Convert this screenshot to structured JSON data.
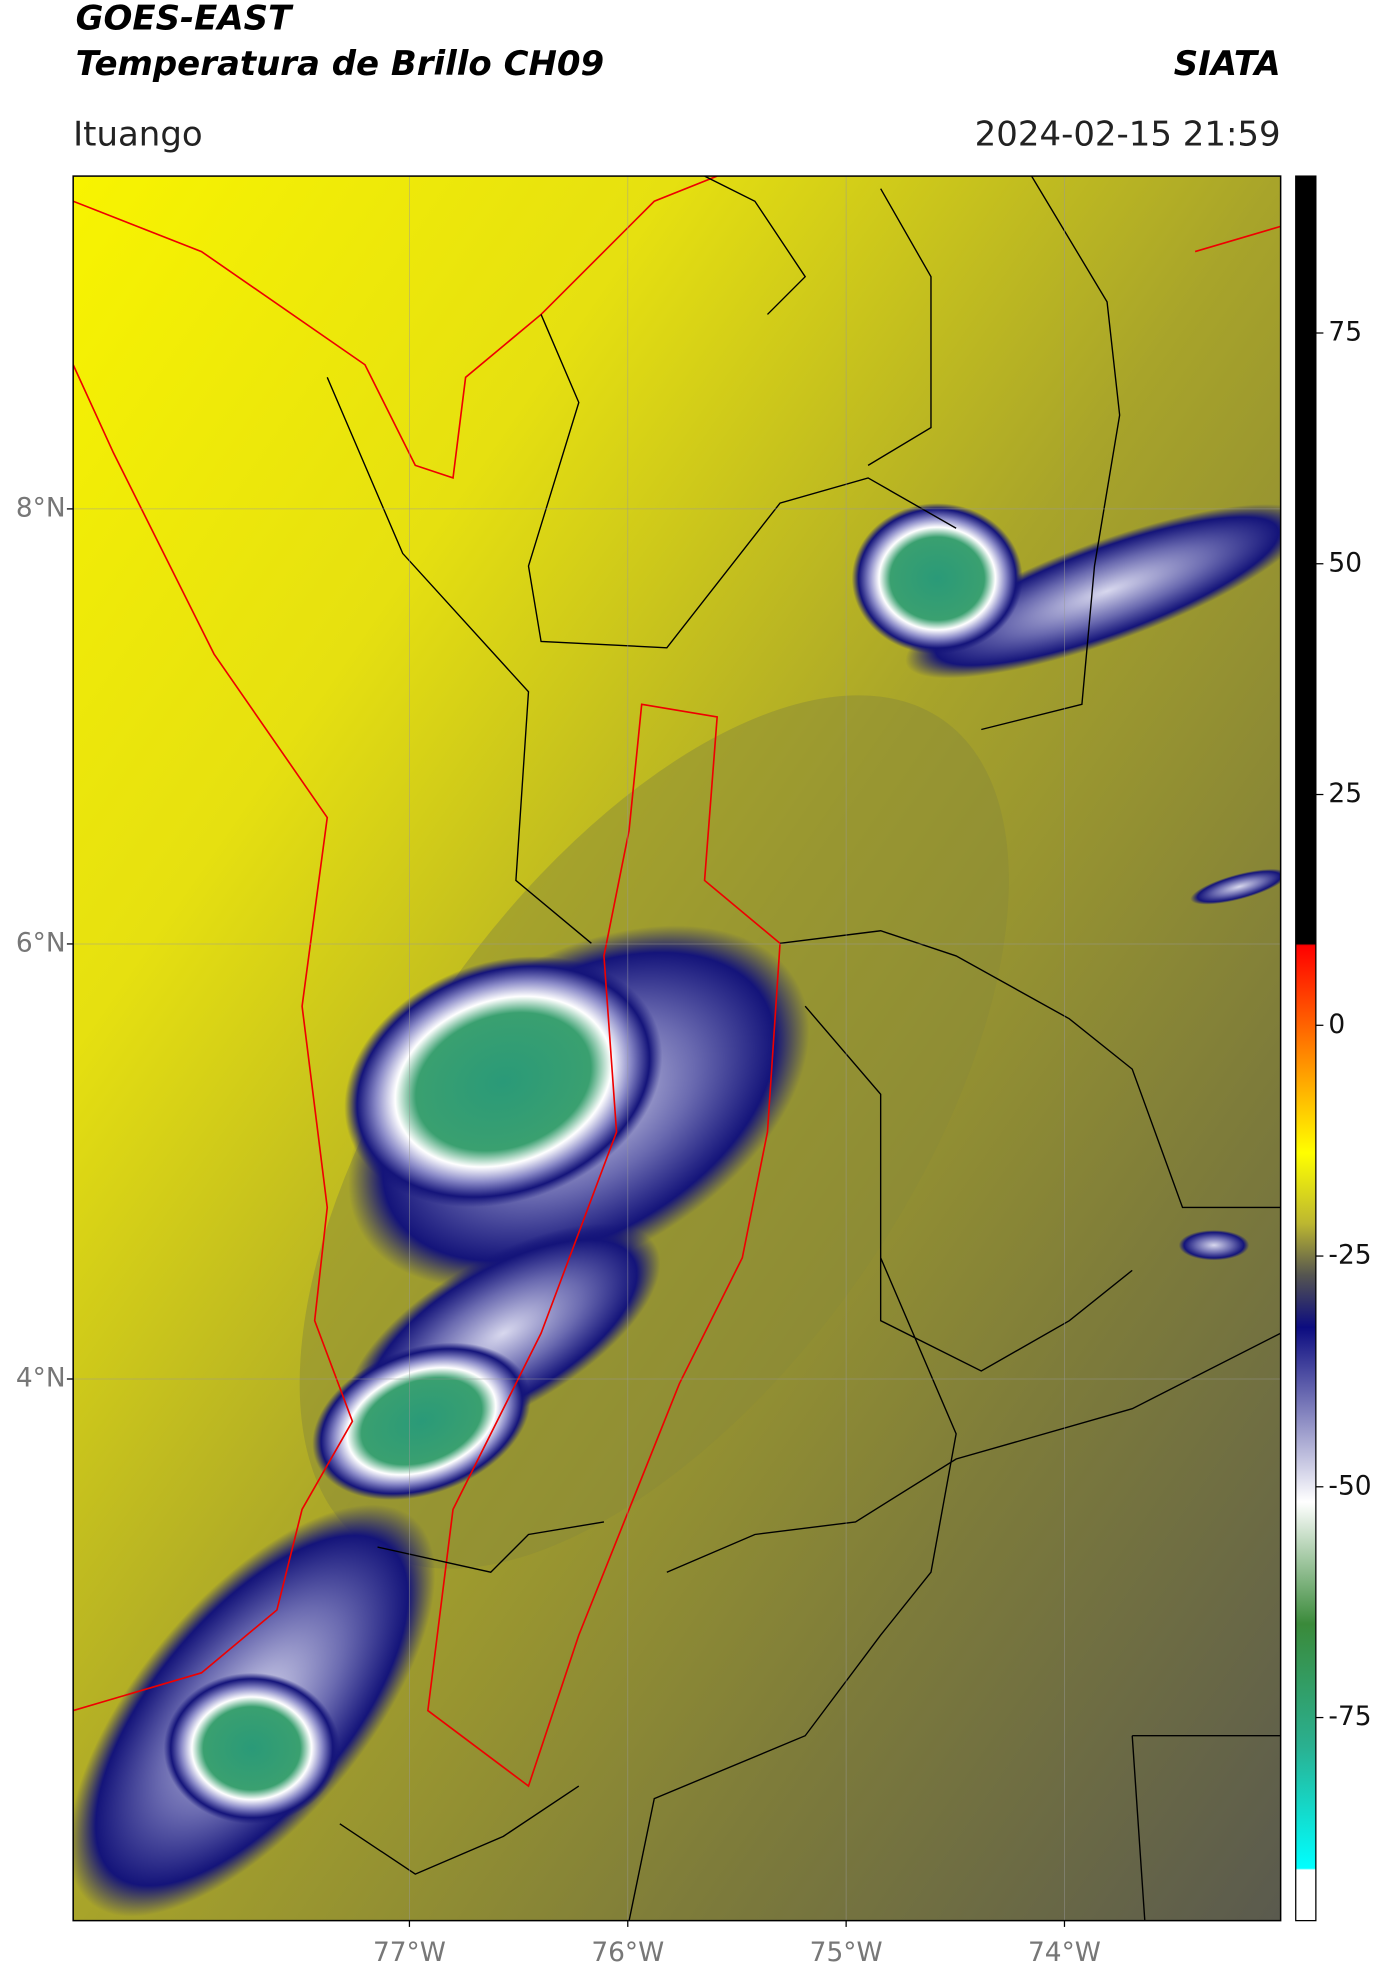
{
  "header": {
    "satellite": "GOES-EAST",
    "product": "Temperatura de Brillo CH09",
    "org": "SIATA",
    "region": "Ituango",
    "datetime": "2024-02-15 21:59"
  },
  "map": {
    "xlim": [
      -78.54,
      -73.01
    ],
    "ylim": [
      1.51,
      9.53
    ],
    "xticks": [
      {
        "value": -77,
        "label": "77°W"
      },
      {
        "value": -76,
        "label": "76°W"
      },
      {
        "value": -75,
        "label": "75°W"
      },
      {
        "value": -74,
        "label": "74°W"
      }
    ],
    "yticks": [
      {
        "value": 4,
        "label": "4°N"
      },
      {
        "value": 6,
        "label": "6°N"
      },
      {
        "value": 8,
        "label": "8°N"
      }
    ],
    "grid": true
  },
  "colorbar": {
    "clim": [
      -97,
      92
    ],
    "ticks": [
      -75,
      -50,
      -25,
      0,
      25,
      50,
      75
    ]
  }
}
